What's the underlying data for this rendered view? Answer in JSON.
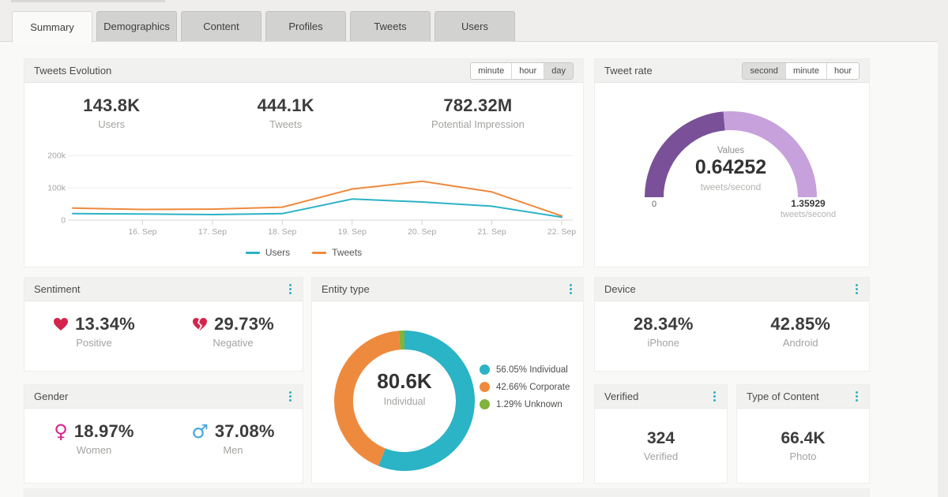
{
  "colors": {
    "accent": "#2ab4c7",
    "heart": "#d5244e",
    "female": "#d8248f",
    "male": "#44a4dc"
  },
  "tabs": {
    "items": [
      {
        "label": "Summary",
        "active": true
      },
      {
        "label": "Demographics",
        "active": false
      },
      {
        "label": "Content",
        "active": false
      },
      {
        "label": "Profiles",
        "active": false
      },
      {
        "label": "Tweets",
        "active": false
      },
      {
        "label": "Users",
        "active": false
      }
    ]
  },
  "panels": {
    "tweets_evolution": {
      "title": "Tweets Evolution",
      "toggles": [
        "minute",
        "hour",
        "day"
      ],
      "active_toggle": "day",
      "stats": [
        {
          "value": "143.8K",
          "label": "Users"
        },
        {
          "value": "444.1K",
          "label": "Tweets"
        },
        {
          "value": "782.32M",
          "label": "Potential Impression"
        }
      ]
    },
    "tweet_rate": {
      "title": "Tweet rate",
      "toggles": [
        "second",
        "minute",
        "hour"
      ],
      "active_toggle": "second",
      "values_label": "Values",
      "value": "0.64252",
      "unit": "tweets/second",
      "min_label": "0",
      "max_label": "1.35929",
      "max_unit": "tweets/second"
    },
    "sentiment": {
      "title": "Sentiment",
      "positive": {
        "value": "13.34%",
        "label": "Positive"
      },
      "negative": {
        "value": "29.73%",
        "label": "Negative"
      }
    },
    "entity_type": {
      "title": "Entity type",
      "center_value": "80.6K",
      "center_label": "Individual",
      "legend": [
        {
          "text": "56.05% Individual"
        },
        {
          "text": "42.66% Corporate"
        },
        {
          "text": "1.29% Unknown"
        }
      ]
    },
    "device": {
      "title": "Device",
      "iphone": {
        "value": "28.34%",
        "label": "iPhone"
      },
      "android": {
        "value": "42.85%",
        "label": "Android"
      }
    },
    "gender": {
      "title": "Gender",
      "women": {
        "value": "18.97%",
        "label": "Women"
      },
      "men": {
        "value": "37.08%",
        "label": "Men"
      }
    },
    "verified": {
      "title": "Verified",
      "value": "324",
      "label": "Verified"
    },
    "type_of_content": {
      "title": "Type of Content",
      "value": "66.4K",
      "label": "Photo"
    }
  },
  "chart_data": [
    {
      "type": "line",
      "title": "Tweets Evolution",
      "categories": [
        "",
        "16. Sep",
        "17. Sep",
        "18. Sep",
        "19. Sep",
        "20. Sep",
        "21. Sep",
        "22. Sep"
      ],
      "series": [
        {
          "name": "Users",
          "color": "#2bb3c6",
          "values": [
            20000,
            19000,
            17000,
            20000,
            65000,
            56000,
            43000,
            9000
          ]
        },
        {
          "name": "Tweets",
          "color": "#ee8a3e",
          "values": [
            37000,
            33000,
            34000,
            40000,
            96000,
            120000,
            87000,
            13000
          ]
        }
      ],
      "ylim": [
        0,
        200000
      ],
      "yticks": [
        {
          "value": 0,
          "label": "0"
        },
        {
          "value": 100000,
          "label": "100k"
        },
        {
          "value": 200000,
          "label": "200k"
        }
      ],
      "grid": true,
      "legend_position": "bottom"
    },
    {
      "type": "gauge",
      "title": "Tweet rate",
      "value": 0.64252,
      "min": 0,
      "max": 1.35929,
      "unit": "tweets/second",
      "colors": {
        "filled": "#7a5198",
        "empty": "#c7a1db"
      }
    },
    {
      "type": "pie",
      "title": "Entity type",
      "center_value": "80.6K",
      "center_label": "Individual",
      "slices": [
        {
          "label": "Individual",
          "value": 56.05,
          "color": "#2bb3c6"
        },
        {
          "label": "Corporate",
          "value": 42.66,
          "color": "#ee8a3e"
        },
        {
          "label": "Unknown",
          "value": 1.29,
          "color": "#80b43a"
        }
      ]
    }
  ]
}
